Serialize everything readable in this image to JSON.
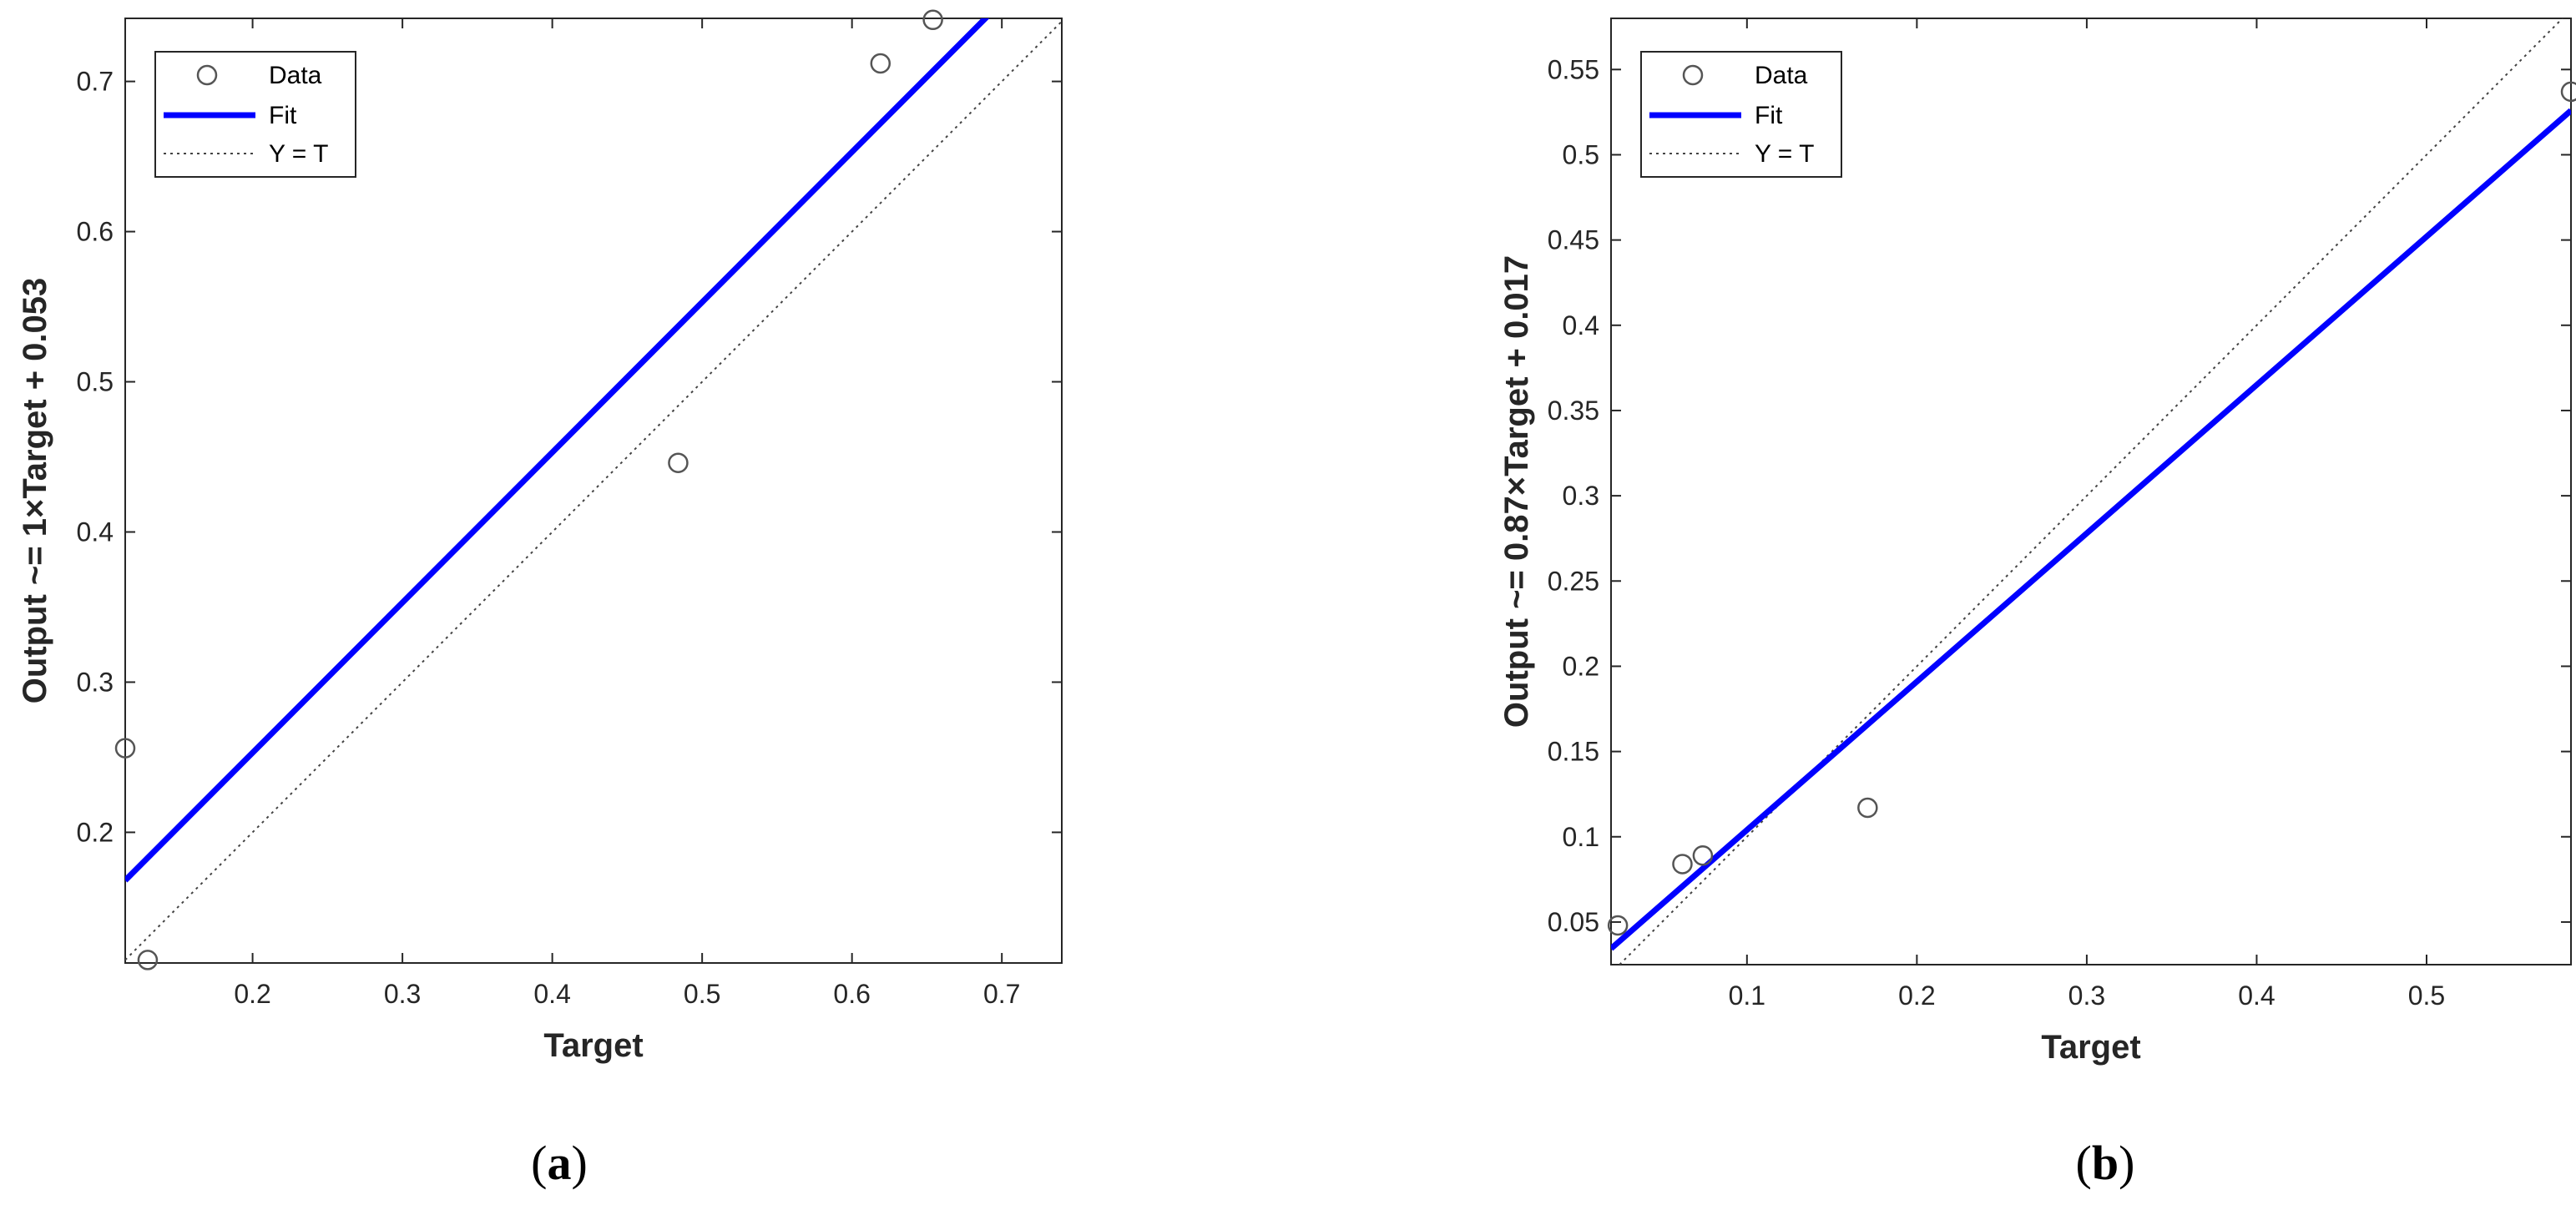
{
  "chart_data": [
    {
      "type": "scatter",
      "panel": "a",
      "caption": {
        "open": "(",
        "letter": "a",
        "close": ")"
      },
      "title": "",
      "xlabel": "Target",
      "ylabel": "Output ~= 1×Target + 0.053",
      "xlim": [
        0.115,
        0.74
      ],
      "ylim": [
        0.113,
        0.742
      ],
      "xticks": [
        "0.2",
        "0.3",
        "0.4",
        "0.5",
        "0.6",
        "0.7"
      ],
      "yticks": [
        "0.2",
        "0.3",
        "0.4",
        "0.5",
        "0.6",
        "0.7"
      ],
      "grid": false,
      "legend_position": "top-left",
      "legend": {
        "data": "Data",
        "fit": "Fit",
        "ref": "Y = T"
      },
      "data_points": [
        {
          "x": 0.115,
          "y": 0.256
        },
        {
          "x": 0.13,
          "y": 0.115
        },
        {
          "x": 0.484,
          "y": 0.446
        },
        {
          "x": 0.619,
          "y": 0.712
        },
        {
          "x": 0.654,
          "y": 0.741
        }
      ],
      "fit": {
        "slope": 1.0,
        "intercept": 0.053
      },
      "colors": {
        "fit": "#0000ff",
        "ref": "#444444",
        "data": "#555555"
      }
    },
    {
      "type": "scatter",
      "panel": "b",
      "caption": {
        "open": "(",
        "letter": "b",
        "close": ")"
      },
      "title": "",
      "xlabel": "Target",
      "ylabel": "Output ~= 0.87×Target + 0.017",
      "xlim": [
        0.02,
        0.585
      ],
      "ylim": [
        0.025,
        0.58
      ],
      "xticks": [
        "0.1",
        "0.2",
        "0.3",
        "0.4",
        "0.5"
      ],
      "yticks": [
        "0.05",
        "0.1",
        "0.15",
        "0.2",
        "0.25",
        "0.3",
        "0.35",
        "0.4",
        "0.45",
        "0.5",
        "0.55"
      ],
      "grid": false,
      "legend_position": "top-left",
      "legend": {
        "data": "Data",
        "fit": "Fit",
        "ref": "Y = T"
      },
      "data_points": [
        {
          "x": 0.024,
          "y": 0.048
        },
        {
          "x": 0.062,
          "y": 0.084
        },
        {
          "x": 0.074,
          "y": 0.089
        },
        {
          "x": 0.171,
          "y": 0.117
        },
        {
          "x": 0.585,
          "y": 0.537
        }
      ],
      "fit": {
        "slope": 0.87,
        "intercept": 0.017
      },
      "colors": {
        "fit": "#0000ff",
        "ref": "#444444",
        "data": "#555555"
      }
    }
  ]
}
